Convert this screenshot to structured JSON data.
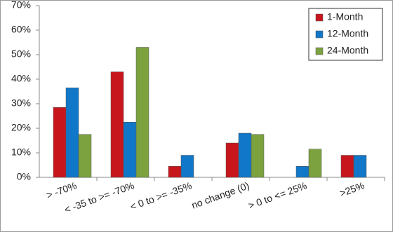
{
  "chart_data": {
    "type": "bar",
    "categories": [
      "> -70%",
      "< -35 to >= -70%",
      "< 0 to >= -35%",
      "no change (0)",
      "> 0 to <= 25%",
      ">25%"
    ],
    "series": [
      {
        "name": "1-Month",
        "color": "#c8161d",
        "values": [
          28.5,
          43,
          4.5,
          14,
          0,
          9
        ]
      },
      {
        "name": "12-Month",
        "color": "#1177c8",
        "values": [
          36.5,
          22.5,
          9,
          18,
          4.5,
          9
        ]
      },
      {
        "name": "24-Month",
        "color": "#7ba23f",
        "values": [
          17.5,
          53,
          0,
          17.5,
          11.5,
          0
        ]
      }
    ],
    "ylim": [
      0,
      70
    ],
    "yticks": [
      {
        "value": 0,
        "label": "0%"
      },
      {
        "value": 10,
        "label": "10%"
      },
      {
        "value": 20,
        "label": "20%"
      },
      {
        "value": 30,
        "label": "30%"
      },
      {
        "value": 40,
        "label": "40%"
      },
      {
        "value": 50,
        "label": "50%"
      },
      {
        "value": 60,
        "label": "60%"
      },
      {
        "value": 70,
        "label": "70%"
      }
    ],
    "legend": "upper right"
  }
}
